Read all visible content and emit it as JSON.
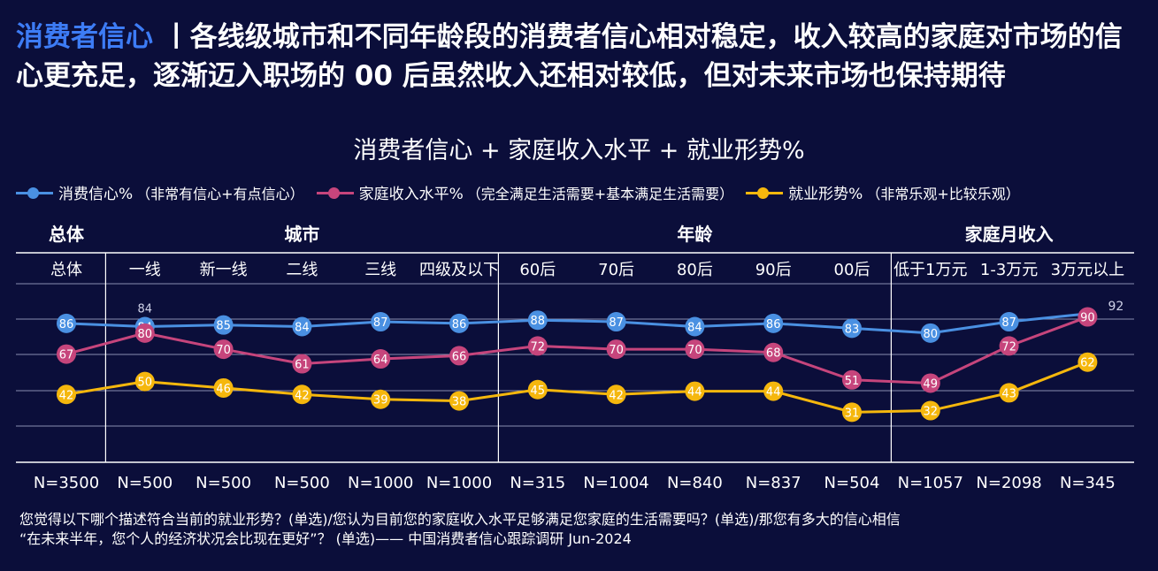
{
  "headline": {
    "accent": "消费者信心",
    "separator": "丨",
    "text": "各线级城市和不同年龄段的消费者信心相对稳定，收入较高的家庭对市场的信心更充足，逐渐迈入职场的 00 后虽然收入还相对较低，但对未来市场也保持期待"
  },
  "colors": {
    "background": "#0b0e3a",
    "accent": "#3d7cf5",
    "confidence": "#4a90e2",
    "income": "#c6457c",
    "employment": "#f5b70d"
  },
  "chart_data": {
    "type": "line",
    "title": "消费者信心 + 家庭收入水平 + 就业形势%",
    "groups": [
      {
        "label": "总体",
        "start": 0,
        "end": 0
      },
      {
        "label": "城市",
        "start": 1,
        "end": 5
      },
      {
        "label": "年龄",
        "start": 6,
        "end": 10
      },
      {
        "label": "家庭月收入",
        "start": 11,
        "end": 13
      }
    ],
    "categories": [
      "总体",
      "一线",
      "新一线",
      "二线",
      "三线",
      "四级及以下",
      "60后",
      "70后",
      "80后",
      "90后",
      "00后",
      "低于1万元",
      "1-3万元",
      "3万元以上"
    ],
    "sample_sizes": [
      "N=3500",
      "N=500",
      "N=500",
      "N=500",
      "N=1000",
      "N=1000",
      "N=315",
      "N=1004",
      "N=840",
      "N=837",
      "N=504",
      "N=1057",
      "N=2098",
      "N=345"
    ],
    "ylim": [
      0,
      110
    ],
    "series": [
      {
        "name": "消费信心%",
        "detail": "（非常有信心+有点信心）",
        "color": "#4a90e2",
        "values": [
          86,
          84,
          85,
          84,
          87,
          86,
          88,
          87,
          84,
          86,
          83,
          80,
          87,
          92
        ]
      },
      {
        "name": "家庭收入水平%",
        "detail": "（完全满足生活需要+基本满足生活需要）",
        "color": "#c6457c",
        "values": [
          67,
          80,
          70,
          61,
          64,
          66,
          72,
          70,
          70,
          68,
          51,
          49,
          72,
          90
        ]
      },
      {
        "name": "就业形势%",
        "detail": "（非常乐观+比较乐观）",
        "color": "#f5b70d",
        "values": [
          42,
          50,
          46,
          42,
          39,
          38,
          45,
          42,
          44,
          44,
          31,
          32,
          43,
          62
        ]
      }
    ]
  },
  "footnote": {
    "line1": "您觉得以下哪个描述符合当前的就业形势？(单选)/您认为目前您的家庭收入水平足够满足您家庭的生活需要吗？(单选)/那您有多大的信心相信",
    "line2": "“在未来半年，您个人的经济状况会比现在更好”？ (单选)—— 中国消费者信心跟踪调研 Jun-2024"
  }
}
